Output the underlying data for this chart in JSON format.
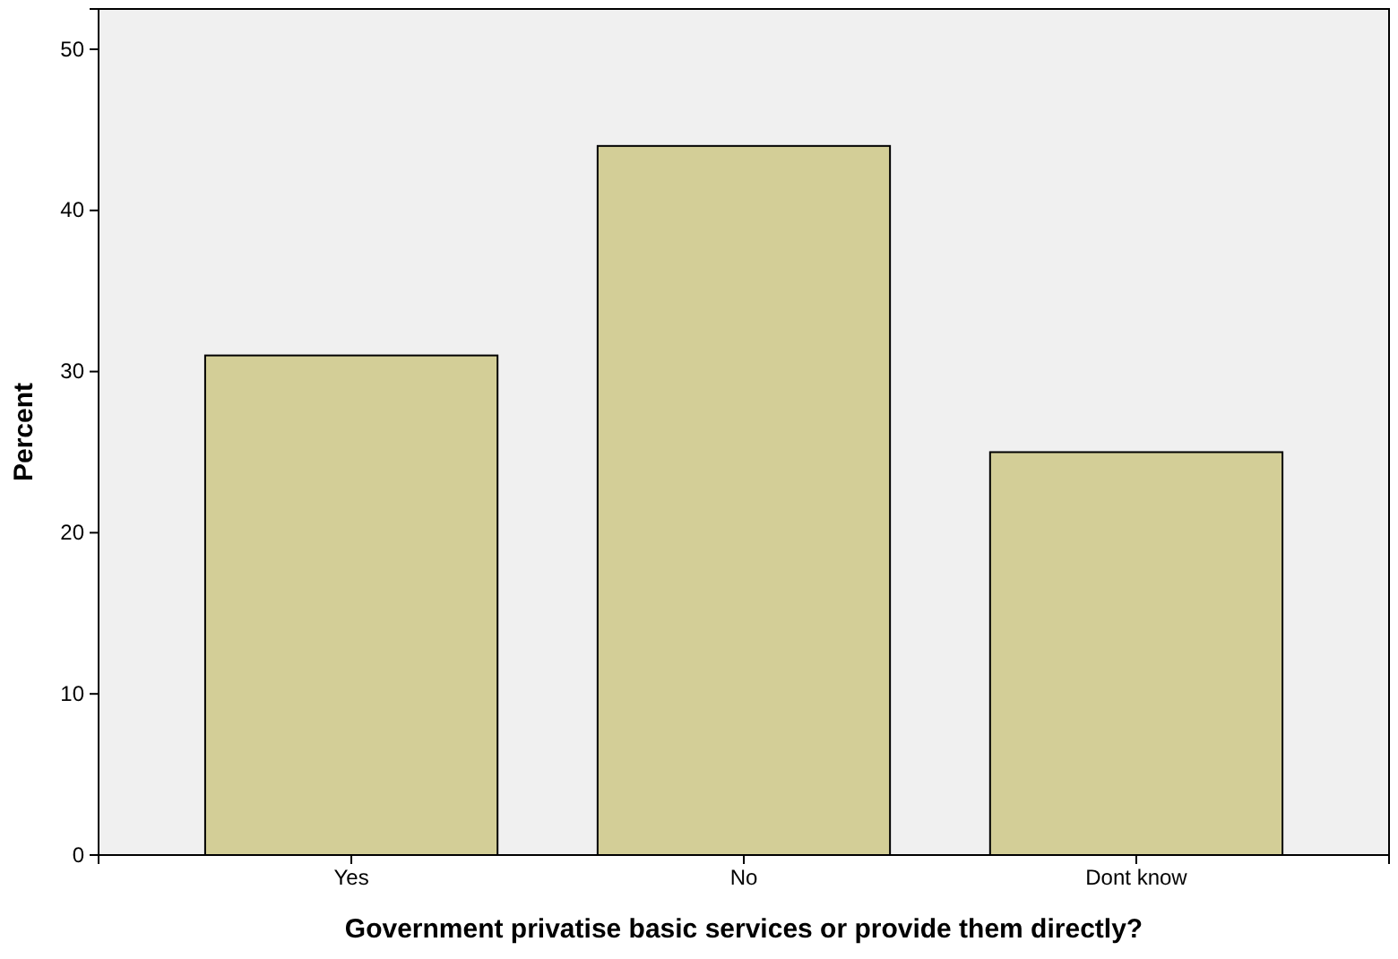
{
  "chart_data": {
    "type": "bar",
    "xlabel": "Government privatise basic services or provide them directly?",
    "ylabel": "Percent",
    "categories": [
      "Yes",
      "No",
      "Dont know"
    ],
    "values": [
      31,
      44,
      25
    ],
    "color": "#d3ce97",
    "ylim": [
      0,
      52.5
    ],
    "yticks": [
      0,
      10,
      20,
      30,
      40,
      50
    ],
    "grid": false
  }
}
